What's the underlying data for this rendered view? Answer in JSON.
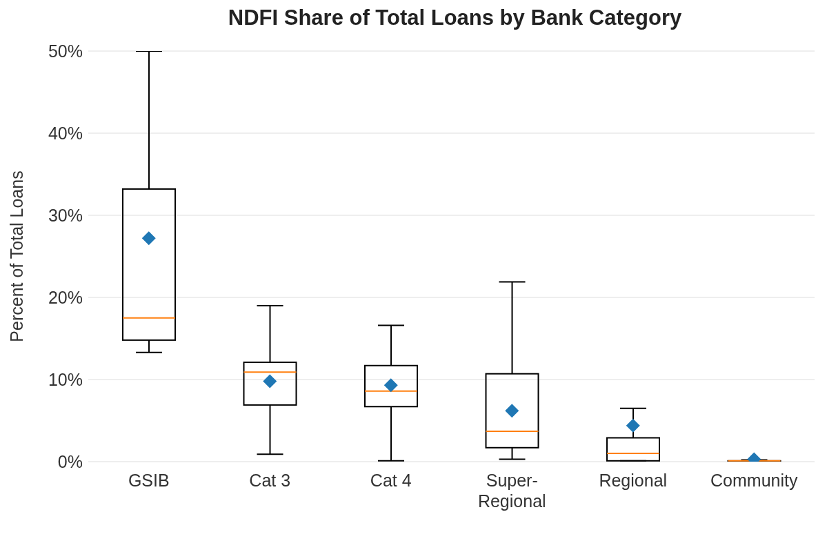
{
  "chart_data": {
    "type": "box",
    "title": "NDFI Share of Total Loans by Bank Category",
    "ylabel": "Percent of Total Loans",
    "categories": [
      "GSIB",
      "Cat 3",
      "Cat 4",
      "Super-Regional",
      "Regional",
      "Community"
    ],
    "series": [
      {
        "type": "box",
        "color": "#000000",
        "boxes": [
          {
            "low": 13.3,
            "q1": 14.8,
            "median": 17.5,
            "q3": 33.2,
            "high": 50
          },
          {
            "low": 0.9,
            "q1": 6.9,
            "median": 10.9,
            "q3": 12.1,
            "high": 19.0
          },
          {
            "low": 0.1,
            "q1": 6.7,
            "median": 8.6,
            "q3": 11.7,
            "high": 16.6
          },
          {
            "low": 0.3,
            "q1": 1.7,
            "median": 3.7,
            "q3": 10.7,
            "high": 21.9
          },
          {
            "low": 0.1,
            "q1": 0.1,
            "median": 1.0,
            "q3": 2.9,
            "high": 6.5
          },
          {
            "low": 0,
            "q1": 0,
            "median": 0.1,
            "q3": 0.1,
            "high": 0.2
          }
        ]
      },
      {
        "type": "scatter",
        "color": "#1f77b4",
        "x": [
          "GSIB",
          "Cat 3",
          "Cat 4",
          "Super-Regional",
          "Regional",
          "Community"
        ],
        "values": [
          27.2,
          9.8,
          9.3,
          6.2,
          4.4,
          0.3
        ]
      }
    ],
    "marker": "diamond",
    "ylim": [
      0,
      50
    ],
    "yticks": [
      {
        "value": 0,
        "label": "0%"
      },
      {
        "value": 10,
        "label": "10%"
      },
      {
        "value": 20,
        "label": "20%"
      },
      {
        "value": 30,
        "label": "30%"
      },
      {
        "value": 40,
        "label": "40%"
      },
      {
        "value": 50,
        "label": "50%"
      }
    ],
    "grid": "y",
    "legend": false
  }
}
